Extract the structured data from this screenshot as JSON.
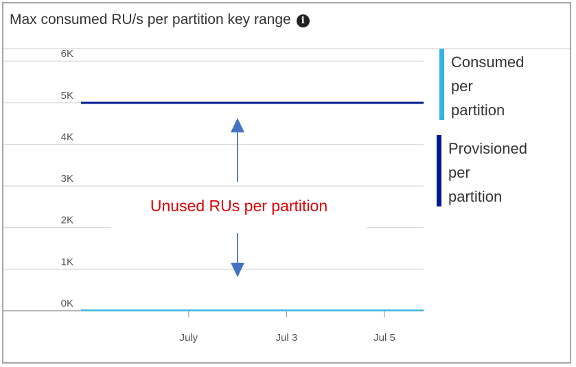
{
  "title": "Max consumed RU/s per partition key range",
  "info_icon": "info-icon",
  "chart_data": {
    "type": "line",
    "y_tick_labels": [
      "0K",
      "1K",
      "2K",
      "3K",
      "4K",
      "5K",
      "6K"
    ],
    "y_ticks": [
      0,
      1000,
      2000,
      3000,
      4000,
      5000,
      6000
    ],
    "ylim": [
      0,
      6300
    ],
    "x_tick_labels": [
      "July",
      "Jul 3",
      "Jul 5"
    ],
    "xlim": [
      -1.2,
      5.8
    ],
    "x_ticks": [
      1,
      3,
      5
    ],
    "series": [
      {
        "name": "Consumed per partition",
        "color": "#33b5e5",
        "x": [
          -1.2,
          5.8
        ],
        "y": [
          10,
          10
        ]
      },
      {
        "name": "Provisioned per partition",
        "color": "#00188f",
        "x": [
          -1.2,
          5.8
        ],
        "y": [
          5000,
          5000
        ]
      }
    ],
    "legend_position": "right",
    "annotation": "Unused RUs per partition",
    "annotation_color": "#e00000",
    "arrow_color": "#4472c4",
    "grid": true
  }
}
